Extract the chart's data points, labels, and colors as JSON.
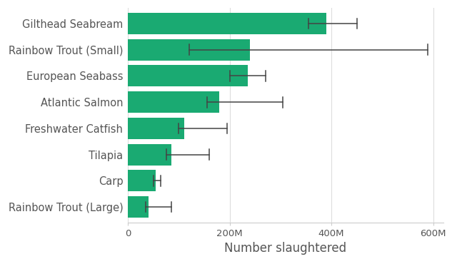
{
  "categories": [
    "Gilthead Seabream",
    "Rainbow Trout (Small)",
    "European Seabass",
    "Atlantic Salmon",
    "Freshwater Catfish",
    "Tilapia",
    "Carp",
    "Rainbow Trout (Large)"
  ],
  "bar_values": [
    390,
    240,
    235,
    180,
    110,
    85,
    55,
    40
  ],
  "error_centers": [
    355,
    120,
    200,
    155,
    100,
    75,
    50,
    35
  ],
  "error_lows": [
    355,
    120,
    200,
    155,
    100,
    75,
    50,
    35
  ],
  "error_highs": [
    450,
    590,
    270,
    305,
    195,
    160,
    65,
    85
  ],
  "bar_color": "#1aaa72",
  "error_color": "#444444",
  "background_color": "#ffffff",
  "grid_color": "#dddddd",
  "xlabel": "Number slaughtered",
  "xlim": [
    0,
    620
  ],
  "xtick_labels": [
    "0",
    "200M",
    "400M",
    "600M"
  ],
  "xtick_values": [
    0,
    200,
    400,
    600
  ],
  "xlabel_fontsize": 12,
  "ytick_fontsize": 10.5
}
